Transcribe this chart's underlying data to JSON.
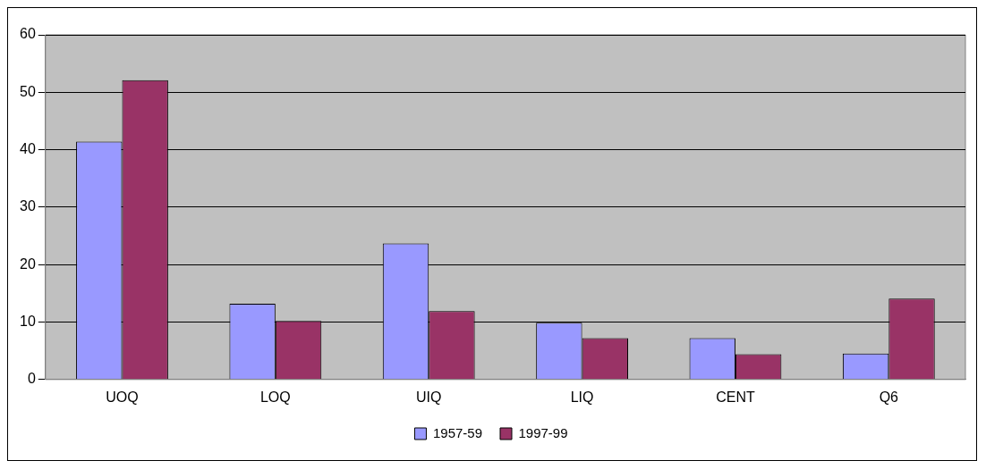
{
  "chart_data": {
    "type": "bar",
    "categories": [
      "UOQ",
      "LOQ",
      "UIQ",
      "LIQ",
      "CENT",
      "Q6"
    ],
    "series": [
      {
        "name": "1957-59",
        "color": "#9999ff",
        "values": [
          41.4,
          13.2,
          23.7,
          9.9,
          7.2,
          4.5
        ]
      },
      {
        "name": "1997-99",
        "color": "#993366",
        "values": [
          52.1,
          10.2,
          11.9,
          7.2,
          4.4,
          14.1
        ]
      }
    ],
    "ylim": [
      0,
      60
    ],
    "yticks": [
      0,
      10,
      20,
      30,
      40,
      50,
      60
    ],
    "grid": "y",
    "legend": "bottom"
  }
}
